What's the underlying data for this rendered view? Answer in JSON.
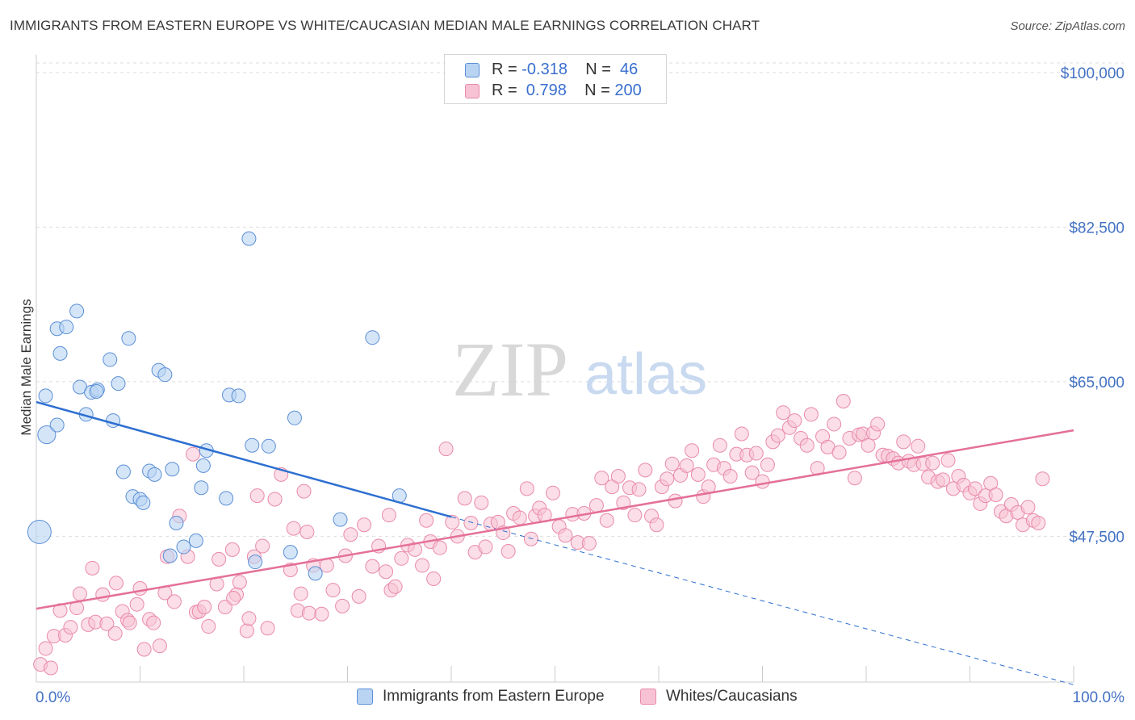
{
  "header": {
    "title": "IMMIGRANTS FROM EASTERN EUROPE VS WHITE/CAUCASIAN MEDIAN MALE EARNINGS CORRELATION CHART",
    "source": "Source: ZipAtlas.com"
  },
  "watermark": {
    "zip": "ZIP",
    "atlas": "atlas"
  },
  "legend": {
    "rows": [
      {
        "r_label": "R = ",
        "r_value": "-0.318",
        "n_label": "N = ",
        "n_value": " 46"
      },
      {
        "r_label": "R = ",
        "r_value": " 0.798",
        "n_label": "N = ",
        "n_value": "200"
      }
    ]
  },
  "colors": {
    "blue_fill": "#b9d3f3",
    "blue_stroke": "#5b8fd6",
    "blue_line": "#2d6fd0",
    "pink_fill": "#f7c3d4",
    "pink_stroke": "#e98aab",
    "pink_line": "#e4709a",
    "tick_text": "#4472c4",
    "grid": "#dddddd"
  },
  "chart_data": {
    "type": "scatter",
    "title": "IMMIGRANTS FROM EASTERN EUROPE VS WHITE/CAUCASIAN MEDIAN MALE EARNINGS CORRELATION CHART",
    "xlabel": "",
    "ylabel": "Median Male Earnings",
    "xlim": [
      0,
      100
    ],
    "ylim": [
      31000,
      102000
    ],
    "x_tick_labels": [
      "0.0%",
      "100.0%"
    ],
    "y_ticks": [
      47500,
      65000,
      82500,
      100000
    ],
    "y_tick_labels": [
      "$47,500",
      "$65,000",
      "$82,500",
      "$100,000"
    ],
    "grid": true,
    "legend_position": "top-center",
    "series": [
      {
        "name": "Immigrants from Eastern Europe",
        "r": -0.318,
        "n": 46,
        "trend": {
          "x": [
            0,
            40
          ],
          "y": [
            62700,
            49700
          ]
        },
        "trend_dashed": {
          "x": [
            40,
            100
          ],
          "y": [
            49700,
            30700
          ]
        },
        "points": [
          [
            0.3,
            48000,
            1.7
          ],
          [
            0.9,
            63400,
            1
          ],
          [
            1.0,
            59000,
            1.3
          ],
          [
            2.0,
            60100,
            1
          ],
          [
            2.0,
            71000,
            1
          ],
          [
            2.3,
            68200,
            1
          ],
          [
            2.9,
            71200,
            1
          ],
          [
            3.9,
            73000,
            1
          ],
          [
            4.2,
            64400,
            1
          ],
          [
            4.8,
            61300,
            1
          ],
          [
            5.3,
            63800,
            1
          ],
          [
            5.9,
            64100,
            1
          ],
          [
            5.8,
            63900,
            1
          ],
          [
            7.1,
            67500,
            1
          ],
          [
            7.4,
            60600,
            1
          ],
          [
            7.9,
            64800,
            1
          ],
          [
            8.4,
            54800,
            1
          ],
          [
            8.9,
            69900,
            1
          ],
          [
            9.3,
            52000,
            1
          ],
          [
            10.0,
            51700,
            1
          ],
          [
            10.3,
            51300,
            1
          ],
          [
            10.9,
            54900,
            1
          ],
          [
            11.4,
            54500,
            1
          ],
          [
            11.8,
            66300,
            1
          ],
          [
            12.4,
            65800,
            1
          ],
          [
            12.9,
            45300,
            1
          ],
          [
            13.1,
            55100,
            1
          ],
          [
            13.5,
            49000,
            1
          ],
          [
            14.2,
            46300,
            1
          ],
          [
            15.4,
            47000,
            1
          ],
          [
            15.9,
            53000,
            1
          ],
          [
            16.1,
            55500,
            1
          ],
          [
            16.4,
            57200,
            1
          ],
          [
            18.3,
            51800,
            1
          ],
          [
            18.6,
            63500,
            1
          ],
          [
            19.5,
            63400,
            1
          ],
          [
            20.5,
            81200,
            1
          ],
          [
            20.8,
            57800,
            1
          ],
          [
            21.1,
            44600,
            1
          ],
          [
            22.4,
            57700,
            1
          ],
          [
            24.5,
            45700,
            1
          ],
          [
            24.9,
            60900,
            1
          ],
          [
            26.9,
            43300,
            1
          ],
          [
            29.3,
            49400,
            1
          ],
          [
            32.4,
            70000,
            1
          ],
          [
            35.0,
            52100,
            1
          ]
        ]
      },
      {
        "name": "Whites/Caucasians",
        "r": 0.798,
        "n": 200,
        "trend": {
          "x": [
            0,
            100
          ],
          "y": [
            39300,
            59500
          ]
        },
        "points": [
          [
            0.4,
            33000
          ],
          [
            0.9,
            34800
          ],
          [
            1.4,
            32600
          ],
          [
            1.7,
            36200
          ],
          [
            2.3,
            39100
          ],
          [
            2.8,
            36300
          ],
          [
            3.3,
            37200
          ],
          [
            3.9,
            39400
          ],
          [
            4.2,
            41000
          ],
          [
            5.0,
            37500
          ],
          [
            5.4,
            43900
          ],
          [
            5.7,
            37800
          ],
          [
            6.4,
            40900
          ],
          [
            6.8,
            37600
          ],
          [
            7.7,
            42200
          ],
          [
            8.3,
            39000
          ],
          [
            8.8,
            38000
          ],
          [
            9.0,
            37700
          ],
          [
            9.7,
            39800
          ],
          [
            10.0,
            41600
          ],
          [
            10.4,
            34700
          ],
          [
            10.9,
            38100
          ],
          [
            11.3,
            37700
          ],
          [
            11.9,
            35100
          ],
          [
            12.4,
            41100
          ],
          [
            12.6,
            45200
          ],
          [
            13.3,
            40100
          ],
          [
            13.8,
            49800
          ],
          [
            14.6,
            45200
          ],
          [
            15.1,
            56800
          ],
          [
            15.4,
            38900
          ],
          [
            15.7,
            39000
          ],
          [
            16.2,
            39500
          ],
          [
            16.6,
            37300
          ],
          [
            17.4,
            42100
          ],
          [
            17.6,
            44900
          ],
          [
            18.2,
            39500
          ],
          [
            18.9,
            46000
          ],
          [
            19.3,
            40900
          ],
          [
            19.6,
            42300
          ],
          [
            20.3,
            36800
          ],
          [
            20.5,
            38200
          ],
          [
            21.0,
            45200
          ],
          [
            21.3,
            52100
          ],
          [
            21.8,
            46400
          ],
          [
            22.3,
            37100
          ],
          [
            23.0,
            51700
          ],
          [
            23.6,
            54500
          ],
          [
            24.5,
            43700
          ],
          [
            24.8,
            48400
          ],
          [
            25.2,
            39100
          ],
          [
            25.5,
            41000
          ],
          [
            25.8,
            52600
          ],
          [
            26.3,
            38800
          ],
          [
            26.7,
            44200
          ],
          [
            27.5,
            38700
          ],
          [
            28.0,
            44200
          ],
          [
            28.6,
            41400
          ],
          [
            29.5,
            39600
          ],
          [
            29.8,
            45300
          ],
          [
            30.3,
            47700
          ],
          [
            31.1,
            40700
          ],
          [
            31.6,
            48800
          ],
          [
            32.4,
            44100
          ],
          [
            33.0,
            46400
          ],
          [
            33.7,
            43500
          ],
          [
            34.2,
            41400
          ],
          [
            34.6,
            41800
          ],
          [
            35.2,
            45000
          ],
          [
            35.8,
            46500
          ],
          [
            36.5,
            46000
          ],
          [
            37.2,
            44200
          ],
          [
            37.6,
            49300
          ],
          [
            38.0,
            46900
          ],
          [
            38.3,
            42700
          ],
          [
            38.9,
            46200
          ],
          [
            39.5,
            57400
          ],
          [
            40.1,
            49100
          ],
          [
            40.6,
            47500
          ],
          [
            41.3,
            51800
          ],
          [
            41.9,
            49000
          ],
          [
            42.3,
            45700
          ],
          [
            42.9,
            51300
          ],
          [
            43.3,
            46300
          ],
          [
            43.8,
            48900
          ],
          [
            44.5,
            49100
          ],
          [
            45.0,
            47900
          ],
          [
            45.5,
            45800
          ],
          [
            46.0,
            50100
          ],
          [
            46.6,
            49600
          ],
          [
            47.3,
            52900
          ],
          [
            47.7,
            47200
          ],
          [
            48.1,
            49800
          ],
          [
            48.5,
            50700
          ],
          [
            49.0,
            49900
          ],
          [
            49.8,
            52400
          ],
          [
            50.4,
            48600
          ],
          [
            51.0,
            47600
          ],
          [
            51.7,
            50000
          ],
          [
            52.2,
            46800
          ],
          [
            52.8,
            50100
          ],
          [
            53.3,
            46700
          ],
          [
            54.0,
            51000
          ],
          [
            54.5,
            54100
          ],
          [
            55.0,
            49300
          ],
          [
            55.5,
            53100
          ],
          [
            56.1,
            54300
          ],
          [
            56.6,
            51300
          ],
          [
            57.2,
            53000
          ],
          [
            57.7,
            49900
          ],
          [
            58.1,
            52800
          ],
          [
            58.7,
            55000
          ],
          [
            59.3,
            49800
          ],
          [
            59.8,
            48800
          ],
          [
            60.3,
            53100
          ],
          [
            60.8,
            54000
          ],
          [
            61.3,
            55700
          ],
          [
            61.6,
            51500
          ],
          [
            62.1,
            54400
          ],
          [
            62.7,
            55500
          ],
          [
            63.2,
            57200
          ],
          [
            63.8,
            54500
          ],
          [
            64.3,
            52000
          ],
          [
            64.8,
            53100
          ],
          [
            65.3,
            55600
          ],
          [
            65.9,
            57800
          ],
          [
            66.3,
            55200
          ],
          [
            66.9,
            54300
          ],
          [
            67.5,
            56800
          ],
          [
            68.0,
            59100
          ],
          [
            68.5,
            56700
          ],
          [
            69.0,
            54700
          ],
          [
            69.4,
            56900
          ],
          [
            70.0,
            53700
          ],
          [
            70.5,
            55600
          ],
          [
            71.0,
            58200
          ],
          [
            71.5,
            58900
          ],
          [
            72.0,
            61500
          ],
          [
            72.6,
            59800
          ],
          [
            73.1,
            60600
          ],
          [
            73.7,
            58600
          ],
          [
            74.3,
            57800
          ],
          [
            74.7,
            61300
          ],
          [
            75.3,
            55200
          ],
          [
            75.8,
            58800
          ],
          [
            76.3,
            57600
          ],
          [
            76.9,
            60200
          ],
          [
            77.4,
            57000
          ],
          [
            77.8,
            62800
          ],
          [
            78.4,
            58600
          ],
          [
            78.9,
            54100
          ],
          [
            79.3,
            59000
          ],
          [
            79.7,
            59100
          ],
          [
            80.2,
            57800
          ],
          [
            80.7,
            59200
          ],
          [
            81.1,
            60200
          ],
          [
            81.6,
            56700
          ],
          [
            82.1,
            56600
          ],
          [
            82.6,
            56300
          ],
          [
            83.1,
            55800
          ],
          [
            83.6,
            58200
          ],
          [
            84.1,
            56000
          ],
          [
            84.6,
            55600
          ],
          [
            85.0,
            57700
          ],
          [
            85.5,
            55700
          ],
          [
            86.0,
            54200
          ],
          [
            86.4,
            55800
          ],
          [
            86.9,
            53700
          ],
          [
            87.4,
            53900
          ],
          [
            87.9,
            56100
          ],
          [
            88.4,
            52900
          ],
          [
            88.9,
            54300
          ],
          [
            89.4,
            53300
          ],
          [
            90.0,
            52400
          ],
          [
            90.5,
            52900
          ],
          [
            91.0,
            51200
          ],
          [
            91.5,
            52100
          ],
          [
            92.0,
            53500
          ],
          [
            92.5,
            52200
          ],
          [
            93.0,
            50300
          ],
          [
            93.5,
            49800
          ],
          [
            94.0,
            51100
          ],
          [
            94.6,
            50200
          ],
          [
            95.1,
            48800
          ],
          [
            95.6,
            50800
          ],
          [
            96.1,
            49300
          ],
          [
            96.6,
            49000
          ],
          [
            97.0,
            54000
          ],
          [
            7.6,
            36500
          ],
          [
            19.0,
            40500
          ],
          [
            26.1,
            48000
          ],
          [
            34.0,
            49900
          ]
        ]
      }
    ]
  },
  "bottom_legend": {
    "items": [
      {
        "label": "Immigrants from Eastern Europe"
      },
      {
        "label": "Whites/Caucasians"
      }
    ]
  }
}
